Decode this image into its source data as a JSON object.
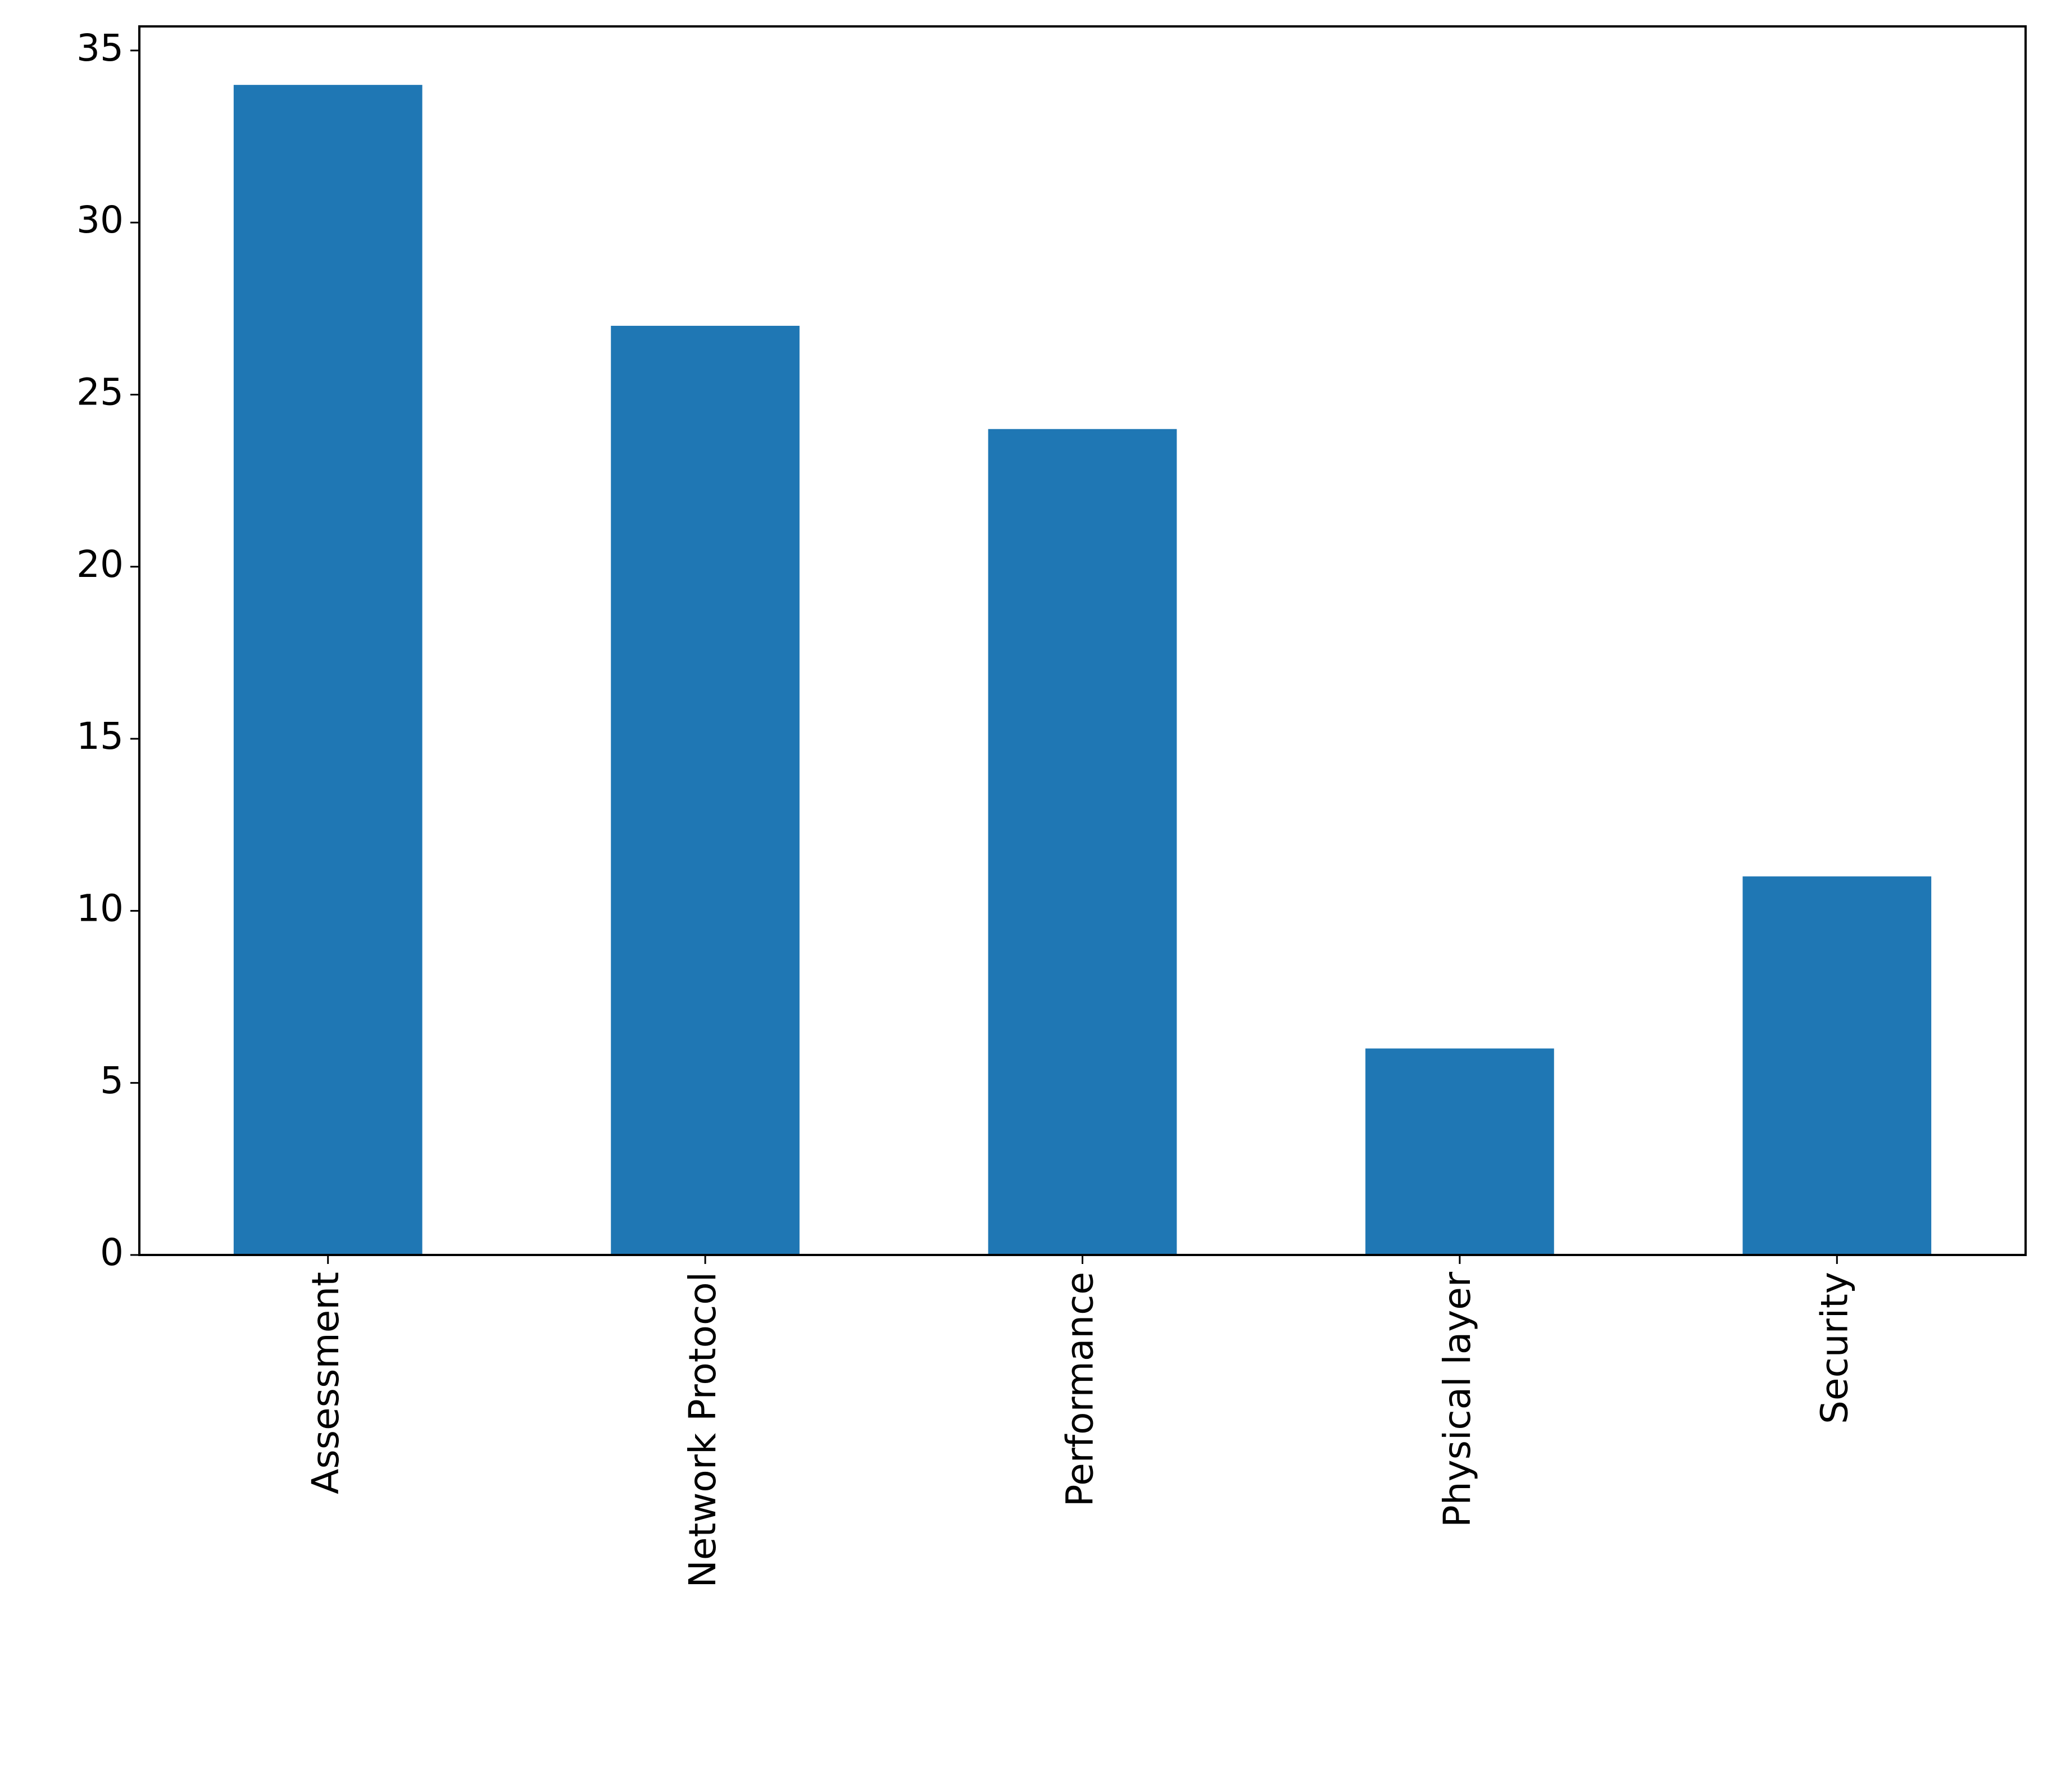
{
  "chart_data": {
    "type": "bar",
    "categories": [
      "Assessment",
      "Network Protocol",
      "Performance",
      "Physical layer",
      "Security"
    ],
    "values": [
      34,
      27,
      24,
      6,
      11
    ],
    "color": "#1f77b4",
    "ylim": [
      0,
      35.7
    ],
    "yticks": [
      0,
      5,
      10,
      15,
      20,
      25,
      30,
      35
    ],
    "grid": false
  }
}
